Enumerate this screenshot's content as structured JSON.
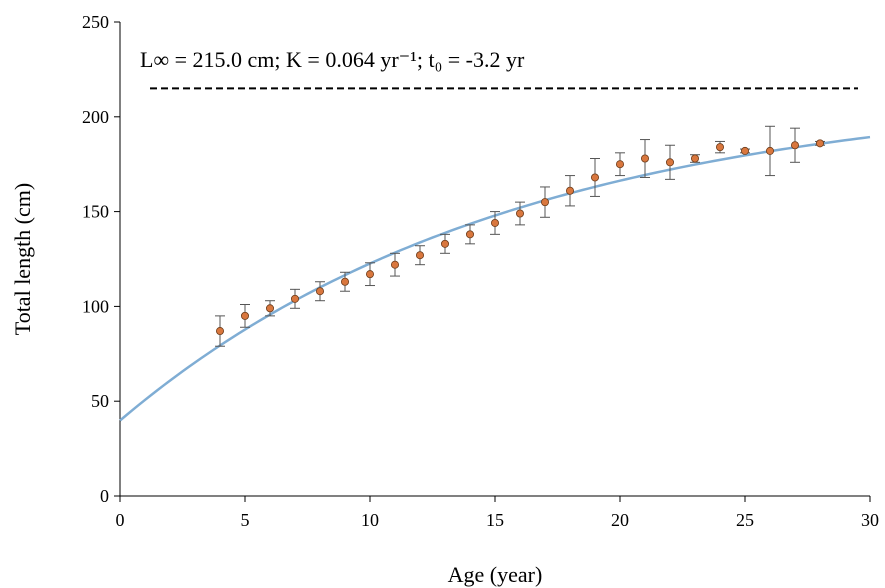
{
  "chart_data": {
    "type": "scatter",
    "xlabel": "Age (year)",
    "ylabel": "Total length (cm)",
    "xlim": [
      0,
      30
    ],
    "ylim": [
      0,
      250
    ],
    "x_ticks": [
      "0",
      "5",
      "10",
      "15",
      "20",
      "25",
      "30"
    ],
    "y_ticks": [
      "0",
      "50",
      "100",
      "150",
      "200",
      "250"
    ],
    "grid": false,
    "annotation": {
      "text": "L∞ = 215.0 cm; K = 0.064 yr⁻¹; t₀ = -3.2 yr",
      "position": "top-left"
    },
    "asymptote": {
      "y": 215,
      "style": "dashed",
      "color": "#000000"
    },
    "fitted_curve": {
      "model": "von Bertalanffy",
      "Linf": 215.0,
      "K": 0.064,
      "t0": -3.2,
      "color": "#7fadd4"
    },
    "points_color": "#d9773e",
    "points": [
      {
        "x": 4,
        "y": 87,
        "err": 8
      },
      {
        "x": 5,
        "y": 95,
        "err": 6
      },
      {
        "x": 6,
        "y": 99,
        "err": 4
      },
      {
        "x": 7,
        "y": 104,
        "err": 5
      },
      {
        "x": 8,
        "y": 108,
        "err": 5
      },
      {
        "x": 9,
        "y": 113,
        "err": 5
      },
      {
        "x": 10,
        "y": 117,
        "err": 6
      },
      {
        "x": 11,
        "y": 122,
        "err": 6
      },
      {
        "x": 12,
        "y": 127,
        "err": 5
      },
      {
        "x": 13,
        "y": 133,
        "err": 5
      },
      {
        "x": 14,
        "y": 138,
        "err": 5
      },
      {
        "x": 15,
        "y": 144,
        "err": 6
      },
      {
        "x": 16,
        "y": 149,
        "err": 6
      },
      {
        "x": 17,
        "y": 155,
        "err": 8
      },
      {
        "x": 18,
        "y": 161,
        "err": 8
      },
      {
        "x": 19,
        "y": 168,
        "err": 10
      },
      {
        "x": 20,
        "y": 175,
        "err": 6
      },
      {
        "x": 21,
        "y": 178,
        "err": 10
      },
      {
        "x": 22,
        "y": 176,
        "err": 9
      },
      {
        "x": 23,
        "y": 178,
        "err": 2
      },
      {
        "x": 24,
        "y": 184,
        "err": 3
      },
      {
        "x": 25,
        "y": 182,
        "err": 1
      },
      {
        "x": 26,
        "y": 182,
        "err": 13
      },
      {
        "x": 27,
        "y": 185,
        "err": 9
      },
      {
        "x": 28,
        "y": 186,
        "err": 1
      }
    ]
  }
}
